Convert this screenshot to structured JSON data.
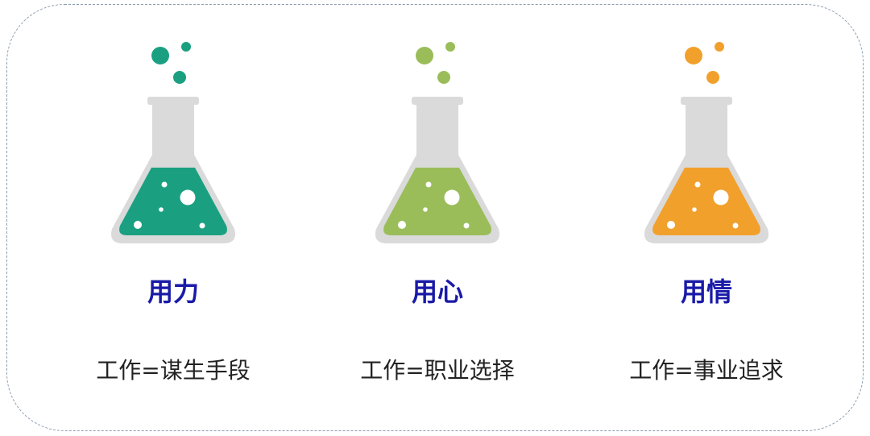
{
  "flasks": [
    {
      "title": "用力",
      "description": "工作=谋生手段",
      "color": "#1aa081"
    },
    {
      "title": "用心",
      "description": "工作=职业选择",
      "color": "#9abd5a"
    },
    {
      "title": "用情",
      "description": "工作=事业追求",
      "color": "#f2a02c"
    }
  ],
  "colors": {
    "glass": "#dadada",
    "title": "#1a1aa8",
    "text": "#222222",
    "frame_border": "#8a9bb0"
  }
}
